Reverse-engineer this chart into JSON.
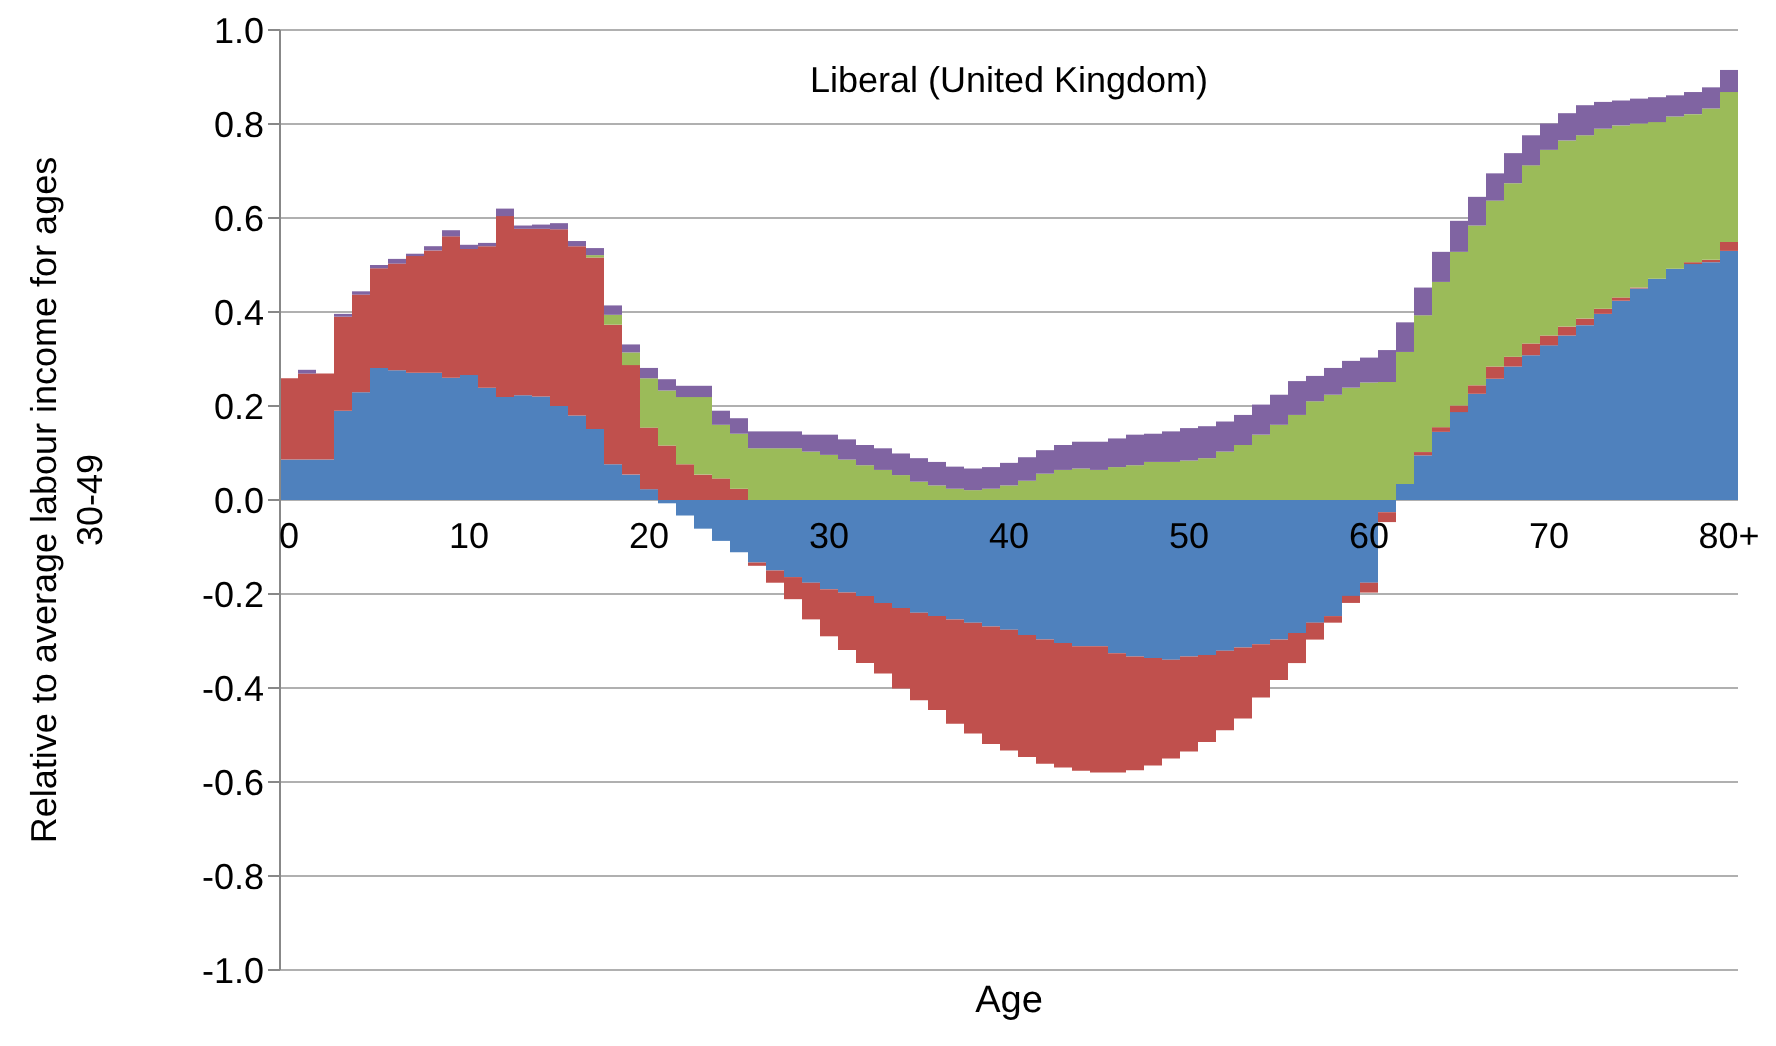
{
  "chart_data": {
    "type": "bar",
    "stacked": true,
    "title": "Liberal (United Kingdom)",
    "xlabel": "Age",
    "ylabel": "Relative to average labour income for ages 30-49",
    "categories": [
      "0",
      null,
      null,
      null,
      null,
      null,
      null,
      null,
      null,
      null,
      "10",
      null,
      null,
      null,
      null,
      null,
      null,
      null,
      null,
      null,
      "20",
      null,
      null,
      null,
      null,
      null,
      null,
      null,
      null,
      null,
      "30",
      null,
      null,
      null,
      null,
      null,
      null,
      null,
      null,
      null,
      "40",
      null,
      null,
      null,
      null,
      null,
      null,
      null,
      null,
      null,
      "50",
      null,
      null,
      null,
      null,
      null,
      null,
      null,
      null,
      null,
      "60",
      null,
      null,
      null,
      null,
      null,
      null,
      null,
      null,
      null,
      "70",
      null,
      null,
      null,
      null,
      null,
      null,
      null,
      null,
      null,
      "80+"
    ],
    "series": [
      {
        "color": "#4f81bd",
        "values": [
          0.086,
          0.086,
          0.086,
          0.19,
          0.229,
          0.281,
          0.276,
          0.271,
          0.271,
          0.26,
          0.266,
          0.239,
          0.219,
          0.223,
          0.22,
          0.2,
          0.18,
          0.151,
          0.076,
          0.054,
          0.023,
          -0.007,
          -0.033,
          -0.061,
          -0.087,
          -0.111,
          -0.133,
          -0.15,
          -0.164,
          -0.176,
          -0.19,
          -0.197,
          -0.204,
          -0.219,
          -0.23,
          -0.24,
          -0.247,
          -0.254,
          -0.261,
          -0.269,
          -0.276,
          -0.287,
          -0.297,
          -0.304,
          -0.311,
          -0.311,
          -0.326,
          -0.333,
          -0.336,
          -0.34,
          -0.333,
          -0.33,
          -0.321,
          -0.314,
          -0.307,
          -0.297,
          -0.283,
          -0.261,
          -0.247,
          -0.204,
          -0.176,
          -0.026,
          0.034,
          0.095,
          0.145,
          0.187,
          0.226,
          0.258,
          0.284,
          0.308,
          0.329,
          0.35,
          0.372,
          0.396,
          0.424,
          0.45,
          0.471,
          0.492,
          0.502,
          0.506,
          0.53
        ]
      },
      {
        "color": "#c0504d",
        "values": [
          0.173,
          0.183,
          0.183,
          0.2,
          0.208,
          0.212,
          0.227,
          0.248,
          0.26,
          0.301,
          0.268,
          0.301,
          0.385,
          0.354,
          0.357,
          0.376,
          0.36,
          0.365,
          0.297,
          0.233,
          0.131,
          0.116,
          0.076,
          0.054,
          0.046,
          0.024,
          -0.007,
          -0.026,
          -0.047,
          -0.078,
          -0.1,
          -0.122,
          -0.143,
          -0.15,
          -0.171,
          -0.186,
          -0.2,
          -0.222,
          -0.236,
          -0.25,
          -0.257,
          -0.26,
          -0.264,
          -0.265,
          -0.265,
          -0.269,
          -0.254,
          -0.242,
          -0.229,
          -0.21,
          -0.202,
          -0.185,
          -0.169,
          -0.151,
          -0.113,
          -0.086,
          -0.064,
          -0.036,
          -0.014,
          -0.015,
          -0.021,
          -0.021,
          0,
          0.007,
          0.01,
          0.014,
          0.018,
          0.026,
          0.021,
          0.025,
          0.021,
          0.019,
          0.014,
          0.011,
          0.007,
          0.002,
          0,
          0,
          0.004,
          0.005,
          0.019
        ]
      },
      {
        "color": "#9bbb59",
        "values": [
          0,
          0,
          0,
          0,
          0,
          0,
          0,
          0,
          0,
          0,
          0,
          0,
          0,
          0,
          0,
          0,
          0,
          0.005,
          0.021,
          0.027,
          0.105,
          0.117,
          0.143,
          0.165,
          0.114,
          0.117,
          0.11,
          0.11,
          0.11,
          0.103,
          0.096,
          0.086,
          0.074,
          0.064,
          0.053,
          0.039,
          0.031,
          0.024,
          0.021,
          0.024,
          0.031,
          0.041,
          0.056,
          0.064,
          0.067,
          0.064,
          0.07,
          0.074,
          0.081,
          0.081,
          0.084,
          0.089,
          0.103,
          0.117,
          0.139,
          0.16,
          0.181,
          0.21,
          0.224,
          0.239,
          0.25,
          0.251,
          0.281,
          0.291,
          0.309,
          0.327,
          0.34,
          0.353,
          0.369,
          0.379,
          0.395,
          0.396,
          0.39,
          0.383,
          0.366,
          0.349,
          0.333,
          0.324,
          0.315,
          0.322,
          0.319
        ]
      },
      {
        "color": "#8064a2",
        "values": [
          0,
          0.008,
          0,
          0.006,
          0.007,
          0.007,
          0.01,
          0.005,
          0.009,
          0.013,
          0.009,
          0.007,
          0.016,
          0.007,
          0.009,
          0.013,
          0.011,
          0.015,
          0.02,
          0.017,
          0.022,
          0.024,
          0.024,
          0.024,
          0.03,
          0.033,
          0.036,
          0.036,
          0.036,
          0.036,
          0.043,
          0.043,
          0.043,
          0.046,
          0.046,
          0.05,
          0.05,
          0.047,
          0.046,
          0.046,
          0.048,
          0.05,
          0.05,
          0.053,
          0.057,
          0.06,
          0.061,
          0.065,
          0.06,
          0.065,
          0.069,
          0.068,
          0.064,
          0.064,
          0.064,
          0.064,
          0.072,
          0.054,
          0.057,
          0.057,
          0.053,
          0.068,
          0.063,
          0.059,
          0.064,
          0.066,
          0.061,
          0.058,
          0.064,
          0.064,
          0.056,
          0.058,
          0.064,
          0.057,
          0.053,
          0.053,
          0.053,
          0.045,
          0.047,
          0.045,
          0.047
        ]
      }
    ],
    "ylim": [
      -1,
      1
    ],
    "yticks": [
      {
        "value": -1,
        "label": "-1.0"
      },
      {
        "value": -0.8,
        "label": "-0.8"
      },
      {
        "value": -0.6,
        "label": "-0.6"
      },
      {
        "value": -0.4,
        "label": "-0.4"
      },
      {
        "value": -0.2,
        "label": "-0.2"
      },
      {
        "value": 0,
        "label": "0.0"
      },
      {
        "value": 0.2,
        "label": "0.2"
      },
      {
        "value": 0.4,
        "label": "0.4"
      },
      {
        "value": 0.6,
        "label": "0.6"
      },
      {
        "value": 0.8,
        "label": "0.8"
      },
      {
        "value": 1,
        "label": "1.0"
      }
    ],
    "grid": "y"
  }
}
